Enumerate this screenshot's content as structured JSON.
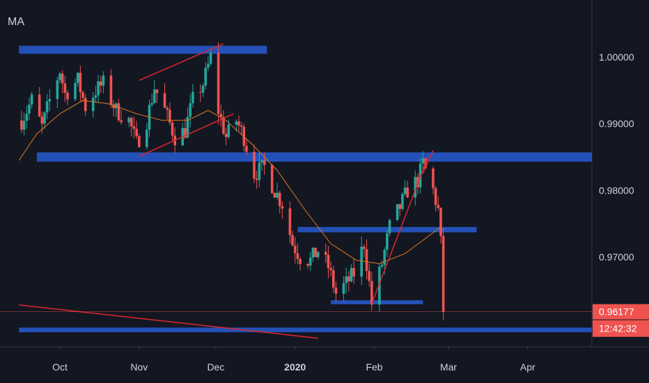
{
  "indicator_label": "MA",
  "colors": {
    "background": "#131722",
    "up": "#26a69a",
    "down": "#ef5350",
    "zone": "#2451b7",
    "trend": "#e0262e",
    "ma": "#e07b1f",
    "axis_text": "#d1d4dc",
    "price_tag": "#ef5350"
  },
  "chart_data": {
    "type": "candlestick",
    "title": "",
    "ylim": [
      0.9575,
      1.0075
    ],
    "date_range": [
      "2019-09-15",
      "2020-04-30"
    ],
    "x_ticks": [
      {
        "label": "Oct",
        "date": "2019-10-01",
        "bold": false
      },
      {
        "label": "Nov",
        "date": "2019-11-01",
        "bold": false
      },
      {
        "label": "Dec",
        "date": "2019-12-01",
        "bold": false
      },
      {
        "label": "2020",
        "date": "2020-01-01",
        "bold": true
      },
      {
        "label": "Feb",
        "date": "2020-02-01",
        "bold": false
      },
      {
        "label": "Mar",
        "date": "2020-03-01",
        "bold": false
      },
      {
        "label": "Apr",
        "date": "2020-04-01",
        "bold": false
      }
    ],
    "y_ticks": [
      {
        "label": "1.00000",
        "value": 1.0
      },
      {
        "label": "0.99000",
        "value": 0.99
      },
      {
        "label": "0.98000",
        "value": 0.98
      },
      {
        "label": "0.97000",
        "value": 0.97
      }
    ],
    "current_price": {
      "label": "0.96177",
      "value": 0.96177,
      "countdown": "12:42:32"
    },
    "price_path": [
      [
        "2019-09-16",
        0.9905
      ],
      [
        "2019-09-20",
        0.9935
      ],
      [
        "2019-09-24",
        0.9895
      ],
      [
        "2019-09-27",
        0.9935
      ],
      [
        "2019-10-01",
        0.998
      ],
      [
        "2019-10-03",
        0.9945
      ],
      [
        "2019-10-08",
        0.9965
      ],
      [
        "2019-10-11",
        0.9925
      ],
      [
        "2019-10-15",
        0.995
      ],
      [
        "2019-10-18",
        0.996
      ],
      [
        "2019-10-23",
        0.992
      ],
      [
        "2019-10-28",
        0.9905
      ],
      [
        "2019-10-31",
        0.987
      ],
      [
        "2019-11-04",
        0.9905
      ],
      [
        "2019-11-07",
        0.9955
      ],
      [
        "2019-11-11",
        0.992
      ],
      [
        "2019-11-15",
        0.988
      ],
      [
        "2019-11-19",
        0.989
      ],
      [
        "2019-11-22",
        0.9935
      ],
      [
        "2019-11-26",
        0.996
      ],
      [
        "2019-11-29",
        1.0
      ],
      [
        "2019-12-02",
        0.992
      ],
      [
        "2019-12-05",
        0.988
      ],
      [
        "2019-12-09",
        0.9905
      ],
      [
        "2019-12-12",
        0.988
      ],
      [
        "2019-12-16",
        0.9825
      ],
      [
        "2019-12-20",
        0.9835
      ],
      [
        "2019-12-24",
        0.98
      ],
      [
        "2019-12-27",
        0.978
      ],
      [
        "2019-12-31",
        0.972
      ],
      [
        "2020-01-03",
        0.97
      ],
      [
        "2020-01-07",
        0.9695
      ],
      [
        "2020-01-10",
        0.971
      ],
      [
        "2020-01-14",
        0.9685
      ],
      [
        "2020-01-17",
        0.9645
      ],
      [
        "2020-01-21",
        0.966
      ],
      [
        "2020-01-24",
        0.9675
      ],
      [
        "2020-01-28",
        0.972
      ],
      [
        "2020-01-31",
        0.963
      ],
      [
        "2020-02-04",
        0.969
      ],
      [
        "2020-02-07",
        0.9745
      ],
      [
        "2020-02-11",
        0.9775
      ],
      [
        "2020-02-14",
        0.98
      ],
      [
        "2020-02-18",
        0.9815
      ],
      [
        "2020-02-20",
        0.984
      ],
      [
        "2020-02-24",
        0.98
      ],
      [
        "2020-02-26",
        0.977
      ],
      [
        "2020-02-27",
        0.972
      ],
      [
        "2020-02-28",
        0.9618
      ]
    ],
    "moving_average": [
      [
        "2019-09-15",
        0.9845
      ],
      [
        "2019-09-22",
        0.9885
      ],
      [
        "2019-10-01",
        0.9915
      ],
      [
        "2019-10-10",
        0.9935
      ],
      [
        "2019-10-20",
        0.993
      ],
      [
        "2019-10-31",
        0.9915
      ],
      [
        "2019-11-10",
        0.9905
      ],
      [
        "2019-11-20",
        0.9905
      ],
      [
        "2019-11-28",
        0.992
      ],
      [
        "2019-12-05",
        0.9905
      ],
      [
        "2019-12-15",
        0.987
      ],
      [
        "2019-12-25",
        0.983
      ],
      [
        "2020-01-05",
        0.977
      ],
      [
        "2020-01-15",
        0.972
      ],
      [
        "2020-01-25",
        0.9695
      ],
      [
        "2020-02-03",
        0.969
      ],
      [
        "2020-02-13",
        0.9705
      ],
      [
        "2020-02-20",
        0.9725
      ],
      [
        "2020-02-27",
        0.9745
      ]
    ],
    "zones": [
      {
        "start": "2019-09-15",
        "end": "2019-12-21",
        "low": 1.0005,
        "high": 1.0017
      },
      {
        "start": "2019-09-22",
        "end": "2020-04-30",
        "low": 0.9843,
        "high": 0.9857
      },
      {
        "start": "2020-01-02",
        "end": "2020-03-12",
        "low": 0.9737,
        "high": 0.9745
      },
      {
        "start": "2020-01-15",
        "end": "2020-02-20",
        "low": 0.9629,
        "high": 0.9635
      },
      {
        "start": "2019-09-15",
        "end": "2020-04-30",
        "low": 0.9587,
        "high": 0.9594
      }
    ],
    "trend_lines": [
      {
        "start": [
          "2019-11-01",
          0.9965
        ],
        "end": [
          "2019-12-04",
          1.002
        ]
      },
      {
        "start": [
          "2019-11-01",
          0.9851
        ],
        "end": [
          "2019-12-08",
          0.9915
        ]
      },
      {
        "start": [
          "2020-01-31",
          0.963
        ],
        "end": [
          "2020-02-22",
          0.985
        ]
      },
      {
        "start": [
          "2020-02-20",
          0.9825
        ],
        "end": [
          "2020-02-24",
          0.986
        ]
      },
      {
        "start": [
          "2019-09-15",
          0.9628
        ],
        "end": [
          "2020-01-10",
          0.9578
        ]
      }
    ]
  }
}
